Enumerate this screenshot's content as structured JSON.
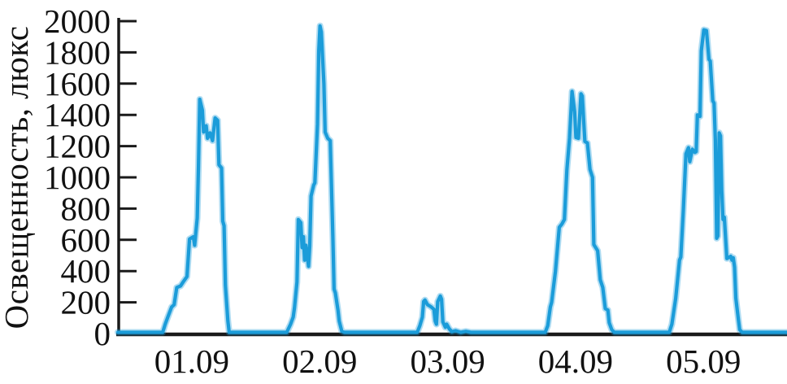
{
  "chart_data": {
    "type": "line",
    "title": "",
    "ylabel": "Освещенность, люкс",
    "xlabel": "",
    "unit": "люкс",
    "x_tick_labels": [
      "01.09",
      "02.09",
      "03.09",
      "04.09",
      "05.09"
    ],
    "x_tick_positions": [
      1,
      2,
      3,
      4,
      5
    ],
    "y_ticks": [
      0,
      200,
      400,
      600,
      800,
      1000,
      1200,
      1400,
      1600,
      1800,
      2000
    ],
    "ylim": [
      0,
      2000
    ],
    "xlim_days": [
      0.41,
      5.64
    ],
    "grid": false,
    "legend": false,
    "line_color": "#1B9CD9",
    "axis_color": "#1A1A1A",
    "text_color": "#111111",
    "background": "#FFFFFF",
    "series": [
      {
        "name": "Освещенность",
        "points": [
          [
            0.41,
            8
          ],
          [
            0.76,
            8
          ],
          [
            0.78,
            60
          ],
          [
            0.8,
            105
          ],
          [
            0.83,
            170
          ],
          [
            0.85,
            185
          ],
          [
            0.87,
            295
          ],
          [
            0.9,
            305
          ],
          [
            0.92,
            330
          ],
          [
            0.95,
            365
          ],
          [
            0.97,
            605
          ],
          [
            1.0,
            620
          ],
          [
            1.01,
            565
          ],
          [
            1.03,
            740
          ],
          [
            1.04,
            1070
          ],
          [
            1.05,
            1500
          ],
          [
            1.07,
            1430
          ],
          [
            1.08,
            1290
          ],
          [
            1.1,
            1330
          ],
          [
            1.11,
            1250
          ],
          [
            1.13,
            1285
          ],
          [
            1.15,
            1235
          ],
          [
            1.17,
            1380
          ],
          [
            1.19,
            1365
          ],
          [
            1.2,
            1080
          ],
          [
            1.22,
            1060
          ],
          [
            1.23,
            720
          ],
          [
            1.24,
            690
          ],
          [
            1.25,
            310
          ],
          [
            1.27,
            80
          ],
          [
            1.28,
            8
          ],
          [
            1.73,
            8
          ],
          [
            1.76,
            60
          ],
          [
            1.78,
            105
          ],
          [
            1.79,
            165
          ],
          [
            1.81,
            330
          ],
          [
            1.82,
            730
          ],
          [
            1.84,
            710
          ],
          [
            1.85,
            550
          ],
          [
            1.86,
            620
          ],
          [
            1.87,
            470
          ],
          [
            1.88,
            565
          ],
          [
            1.9,
            430
          ],
          [
            1.91,
            560
          ],
          [
            1.92,
            880
          ],
          [
            1.94,
            950
          ],
          [
            1.95,
            965
          ],
          [
            1.97,
            1340
          ],
          [
            1.98,
            1810
          ],
          [
            1.99,
            1970
          ],
          [
            2.0,
            1930
          ],
          [
            2.02,
            1600
          ],
          [
            2.03,
            1290
          ],
          [
            2.05,
            1250
          ],
          [
            2.07,
            1235
          ],
          [
            2.09,
            620
          ],
          [
            2.1,
            285
          ],
          [
            2.11,
            260
          ],
          [
            2.13,
            150
          ],
          [
            2.14,
            80
          ],
          [
            2.16,
            15
          ],
          [
            2.18,
            8
          ],
          [
            2.75,
            8
          ],
          [
            2.77,
            50
          ],
          [
            2.79,
            105
          ],
          [
            2.8,
            205
          ],
          [
            2.81,
            215
          ],
          [
            2.83,
            185
          ],
          [
            2.84,
            180
          ],
          [
            2.86,
            170
          ],
          [
            2.88,
            155
          ],
          [
            2.89,
            80
          ],
          [
            2.9,
            60
          ],
          [
            2.91,
            205
          ],
          [
            2.93,
            240
          ],
          [
            2.94,
            220
          ],
          [
            2.95,
            75
          ],
          [
            2.97,
            40
          ],
          [
            2.98,
            60
          ],
          [
            3.0,
            30
          ],
          [
            3.02,
            12
          ],
          [
            3.05,
            18
          ],
          [
            3.09,
            8
          ],
          [
            3.13,
            14
          ],
          [
            3.17,
            8
          ],
          [
            3.75,
            8
          ],
          [
            3.77,
            50
          ],
          [
            3.79,
            170
          ],
          [
            3.8,
            200
          ],
          [
            3.83,
            400
          ],
          [
            3.86,
            680
          ],
          [
            3.88,
            700
          ],
          [
            3.9,
            730
          ],
          [
            3.92,
            1050
          ],
          [
            3.94,
            1250
          ],
          [
            3.96,
            1550
          ],
          [
            3.98,
            1420
          ],
          [
            3.99,
            1255
          ],
          [
            4.01,
            1250
          ],
          [
            4.03,
            1535
          ],
          [
            4.04,
            1520
          ],
          [
            4.06,
            1230
          ],
          [
            4.08,
            1220
          ],
          [
            4.1,
            1050
          ],
          [
            4.12,
            1000
          ],
          [
            4.13,
            570
          ],
          [
            4.16,
            530
          ],
          [
            4.18,
            345
          ],
          [
            4.2,
            295
          ],
          [
            4.22,
            160
          ],
          [
            4.24,
            150
          ],
          [
            4.25,
            70
          ],
          [
            4.27,
            25
          ],
          [
            4.29,
            8
          ],
          [
            4.72,
            8
          ],
          [
            4.74,
            60
          ],
          [
            4.77,
            225
          ],
          [
            4.8,
            470
          ],
          [
            4.81,
            490
          ],
          [
            4.83,
            790
          ],
          [
            4.85,
            1150
          ],
          [
            4.87,
            1190
          ],
          [
            4.88,
            1100
          ],
          [
            4.9,
            1180
          ],
          [
            4.92,
            1160
          ],
          [
            4.93,
            1165
          ],
          [
            4.94,
            1400
          ],
          [
            4.96,
            1390
          ],
          [
            4.97,
            1810
          ],
          [
            4.99,
            1945
          ],
          [
            5.01,
            1940
          ],
          [
            5.03,
            1755
          ],
          [
            5.04,
            1745
          ],
          [
            5.06,
            1490
          ],
          [
            5.07,
            1475
          ],
          [
            5.08,
            1235
          ],
          [
            5.09,
            610
          ],
          [
            5.1,
            625
          ],
          [
            5.11,
            1285
          ],
          [
            5.12,
            1265
          ],
          [
            5.13,
            920
          ],
          [
            5.14,
            730
          ],
          [
            5.15,
            745
          ],
          [
            5.17,
            480
          ],
          [
            5.2,
            495
          ],
          [
            5.21,
            470
          ],
          [
            5.22,
            485
          ],
          [
            5.23,
            425
          ],
          [
            5.24,
            225
          ],
          [
            5.26,
            90
          ],
          [
            5.27,
            25
          ],
          [
            5.29,
            8
          ],
          [
            5.64,
            8
          ]
        ]
      }
    ]
  }
}
